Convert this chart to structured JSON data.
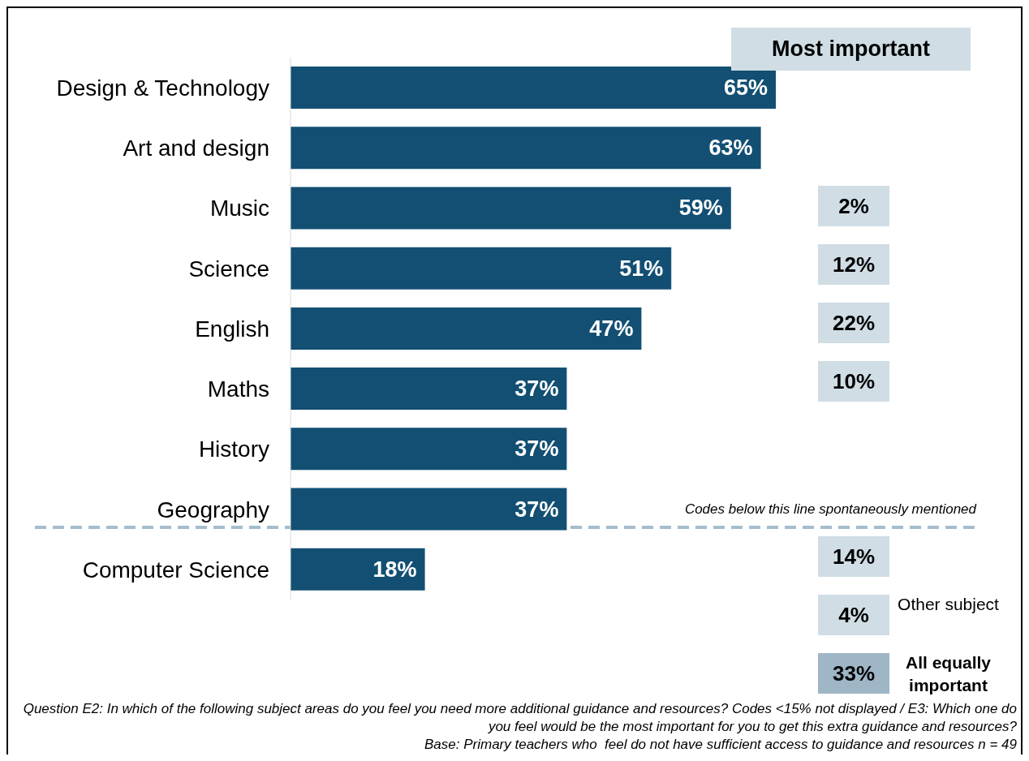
{
  "chart_data": [
    {
      "type": "bar",
      "orientation": "horizontal",
      "categories": [
        "Design & Technology",
        "Art and design",
        "Music",
        "Science",
        "English",
        "Maths",
        "History",
        "Geography",
        "Computer Science"
      ],
      "values": [
        65,
        63,
        59,
        51,
        47,
        37,
        37,
        37,
        18
      ],
      "value_labels": [
        "65%",
        "63%",
        "59%",
        "51%",
        "47%",
        "37%",
        "37%",
        "37%",
        "18%"
      ],
      "color": "#124f73",
      "tick_labels": "y",
      "grid": false,
      "legend": false,
      "annotations": [
        "Codes below this line spontaneously mentioned",
        "Question E2: In which of the following subject areas do you feel you need more additional guidance and resources? Codes <15% not displayed / E3: Which one do you feel would be the most important for you to get this extra guidance and resources?",
        "Base: Primary teachers who  feel do not have sufficient access to guidance and resources n = 49"
      ]
    },
    {
      "type": "other",
      "title": "Most important",
      "categories": [
        null,
        null,
        null,
        null,
        null,
        null,
        null,
        null,
        null,
        "Other subject",
        "All equally important"
      ],
      "values": [
        null,
        null,
        2,
        12,
        22,
        10,
        null,
        null,
        14,
        4,
        33
      ],
      "value_labels": [
        null,
        null,
        "2%",
        "12%",
        "22%",
        "10%",
        null,
        null,
        "14%",
        "4%",
        "33%"
      ],
      "colors": [
        null,
        null,
        "#d0dde5",
        "#d0dde5",
        "#d0dde5",
        "#d0dde5",
        null,
        null,
        "#d0dde5",
        "#d0dde5",
        "#9fb6c6"
      ]
    }
  ]
}
